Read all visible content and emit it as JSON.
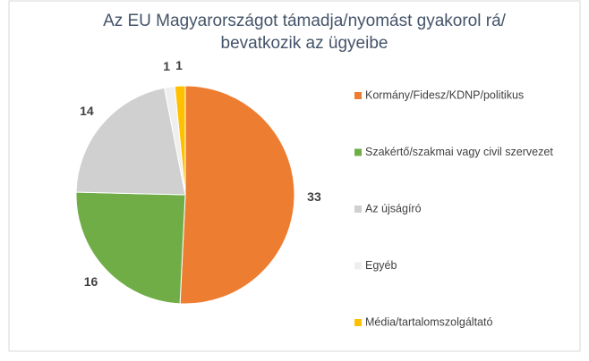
{
  "chart_data": {
    "type": "pie",
    "title": [
      "Az EU Magyarországot támadja/nyomást gyakorol rá/",
      "bevatkozik az ügyeibe"
    ],
    "categories": [
      "Kormány/Fidesz/KDNP/politikus",
      "Szakértő/szakmai vagy civil szervezet",
      "Az újságíró",
      "Egyéb",
      "Média/tartalomszolgáltató"
    ],
    "values": [
      33,
      16,
      14,
      1,
      1
    ],
    "colors": [
      "#ED7D31",
      "#70AD47",
      "#D0D0D0",
      "#EFEFEF",
      "#FFC000"
    ],
    "legend": "right"
  }
}
